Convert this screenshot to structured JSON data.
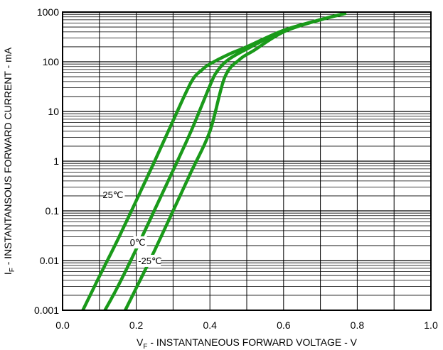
{
  "chart_data": {
    "type": "line",
    "title": "",
    "xlabel": {
      "main": "V",
      "sub": "F",
      "rest": " - INSTANTANEOUS FORWARD VOLTAGE - V"
    },
    "ylabel": {
      "main": "I",
      "sub": "F",
      "rest": " - INSTANTANSOUS FORWARD CURRENT - mA"
    },
    "xlim": [
      0,
      1.0
    ],
    "ylim": [
      0.001,
      1000
    ],
    "yscale": "log",
    "grid": true,
    "x_tick_labels": [
      "0.0",
      "0.2",
      "0.4",
      "0.6",
      "0.8",
      "1.0"
    ],
    "x_ticks": [
      0,
      0.2,
      0.4,
      0.6,
      0.8,
      1.0
    ],
    "y_tick_labels": [
      "0.001",
      "0.01",
      "0.1",
      "1",
      "10",
      "100",
      "1000"
    ],
    "y_ticks": [
      0.001,
      0.01,
      0.1,
      1,
      10,
      100,
      1000
    ],
    "series_color": "#1a9a1a",
    "series": [
      {
        "name": "25℃",
        "x": [
          0.055,
          0.1,
          0.15,
          0.2,
          0.25,
          0.3,
          0.35,
          0.38,
          0.4,
          0.45,
          0.5,
          0.6,
          0.7,
          0.77
        ],
        "y": [
          0.001,
          0.0048,
          0.0265,
          0.16,
          1.0,
          6.5,
          40,
          70,
          90,
          140,
          200,
          430,
          700,
          950
        ]
      },
      {
        "name": "0℃",
        "x": [
          0.115,
          0.15,
          0.2,
          0.25,
          0.3,
          0.35,
          0.4,
          0.42,
          0.45,
          0.5,
          0.6,
          0.7,
          0.77
        ],
        "y": [
          0.001,
          0.003,
          0.017,
          0.105,
          0.65,
          4.2,
          33,
          65,
          110,
          180,
          420,
          700,
          950
        ]
      },
      {
        "name": "-25℃",
        "x": [
          0.17,
          0.2,
          0.25,
          0.3,
          0.35,
          0.4,
          0.44,
          0.48,
          0.52,
          0.6,
          0.7,
          0.77
        ],
        "y": [
          0.001,
          0.0028,
          0.016,
          0.1,
          0.63,
          4.0,
          48,
          110,
          170,
          400,
          700,
          950
        ]
      }
    ]
  }
}
